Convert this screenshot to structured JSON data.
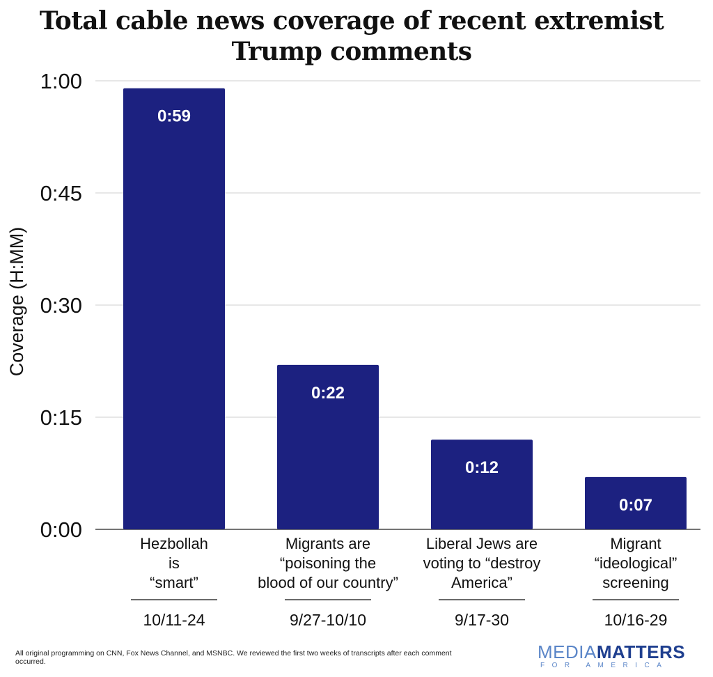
{
  "chart_data": {
    "type": "bar",
    "title": "Total cable news coverage of recent extremist Trump comments",
    "ylabel": "Coverage (H:MM)",
    "xlabel": "",
    "ylim": [
      0,
      60
    ],
    "y_ticks": [
      {
        "value": 0,
        "label": "0:00"
      },
      {
        "value": 15,
        "label": "0:15"
      },
      {
        "value": 30,
        "label": "0:30"
      },
      {
        "value": 45,
        "label": "0:45"
      },
      {
        "value": 60,
        "label": "1:00"
      }
    ],
    "grid": true,
    "bar_color": "#1c2180",
    "categories": [
      {
        "lines": [
          "Hezbollah",
          "is",
          "“smart”"
        ],
        "dates": "10/11-24",
        "value": 59,
        "label": "0:59"
      },
      {
        "lines": [
          "Migrants are",
          "“poisoning the",
          "blood of our country”"
        ],
        "dates": "9/27-10/10",
        "value": 22,
        "label": "0:22"
      },
      {
        "lines": [
          "Liberal Jews are",
          "voting to “destroy",
          "America”"
        ],
        "dates": "9/17-30",
        "value": 12,
        "label": "0:12"
      },
      {
        "lines": [
          "Migrant",
          "“ideological”",
          "screening"
        ],
        "dates": "10/16-29",
        "value": 7,
        "label": "0:07"
      }
    ]
  },
  "footnote": "All original programming on CNN, Fox News Channel, and MSNBC. We reviewed the first two weeks of transcripts after each comment occurred.",
  "logo": {
    "word1": "MEDIA",
    "word2": "MATTERS",
    "sub": "FOR AMERICA"
  }
}
